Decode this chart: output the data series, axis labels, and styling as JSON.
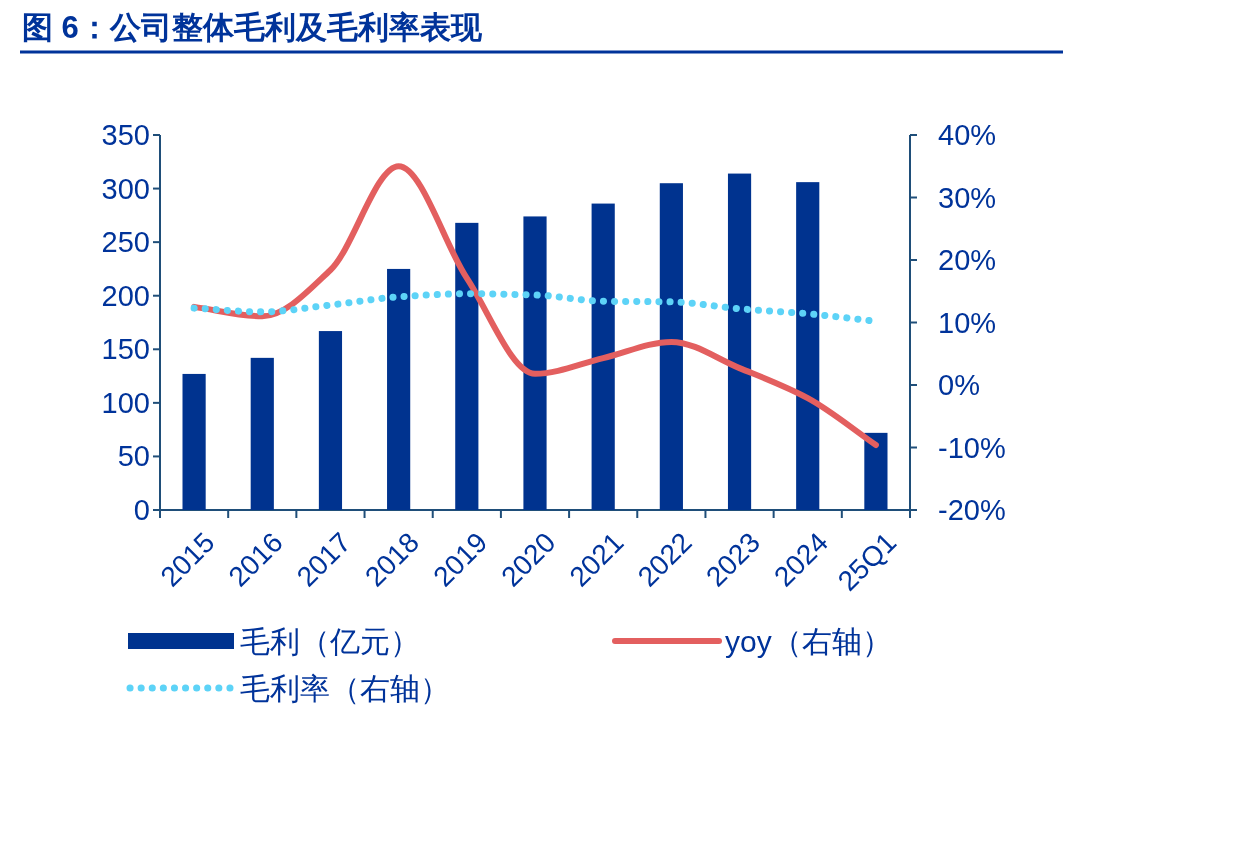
{
  "chart_data": {
    "type": "bar",
    "title": "图 6：公司整体毛利及毛利率表现",
    "categories": [
      "2015",
      "2016",
      "2017",
      "2018",
      "2019",
      "2020",
      "2021",
      "2022",
      "2023",
      "2024",
      "25Q1"
    ],
    "series": [
      {
        "name": "毛利（亿元）",
        "color": "#00338f",
        "values": [
          127,
          142,
          167,
          225,
          268,
          274,
          286,
          305,
          314,
          306,
          72
        ]
      },
      {
        "name": "yoy（右轴）",
        "type": "line",
        "axis": "y2",
        "color": "#e35f5f",
        "line_style": "solid",
        "values": [
          12.5,
          11,
          18.4,
          35,
          17.1,
          1.8,
          4.3,
          6.9,
          2.7,
          -2.1,
          -9.6
        ]
      },
      {
        "name": "毛利率（右轴）",
        "type": "line",
        "axis": "y2",
        "color": "#5dd3f7",
        "line_style": "dotted",
        "values": [
          12.3,
          11.7,
          12.8,
          14.1,
          14.6,
          14.4,
          13.4,
          13.3,
          12.2,
          11.4,
          10.2
        ]
      }
    ],
    "ylim": [
      0,
      350
    ],
    "yticks": [
      0,
      50,
      100,
      150,
      200,
      250,
      300,
      350
    ],
    "y2lim": [
      -20,
      40
    ],
    "y2ticks": [
      {
        "value": -20,
        "label": "-20%"
      },
      {
        "value": -10,
        "label": "-10%"
      },
      {
        "value": 0,
        "label": "0%"
      },
      {
        "value": 10,
        "label": "10%"
      },
      {
        "value": 20,
        "label": "20%"
      },
      {
        "value": 30,
        "label": "30%"
      },
      {
        "value": 40,
        "label": "40%"
      }
    ],
    "grid": false,
    "legend": "bottom",
    "marker": "none"
  }
}
